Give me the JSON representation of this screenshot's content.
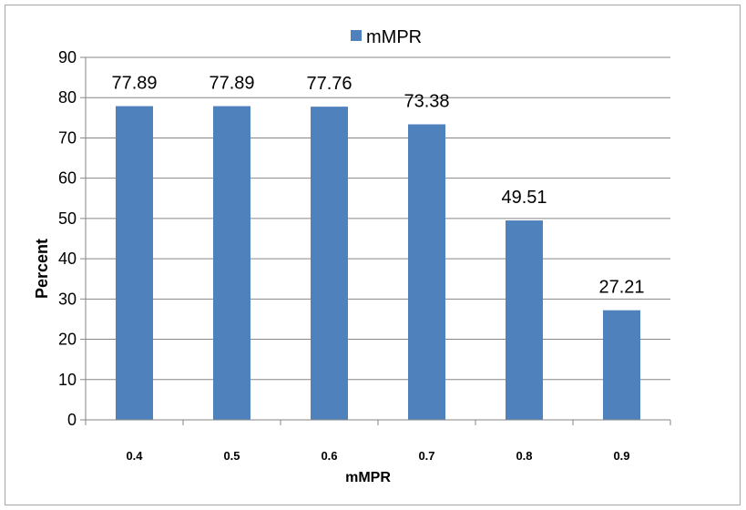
{
  "chart_data": {
    "type": "bar",
    "categories": [
      "0.4",
      "0.5",
      "0.6",
      "0.7",
      "0.8",
      "0.9"
    ],
    "series": [
      {
        "name": "mMPR",
        "values": [
          77.89,
          77.89,
          77.76,
          73.38,
          49.51,
          27.21
        ]
      }
    ],
    "data_labels": [
      "77.89",
      "77.89",
      "77.76",
      "73.38",
      "49.51",
      "27.21"
    ],
    "xlabel": "mMPR",
    "ylabel": "Percent",
    "ylim": [
      0,
      90
    ],
    "yticks": [
      "0",
      "10",
      "20",
      "30",
      "40",
      "50",
      "60",
      "70",
      "80",
      "90"
    ],
    "grid": true,
    "legend_position": "top",
    "bar_color": "#4f81bd"
  }
}
